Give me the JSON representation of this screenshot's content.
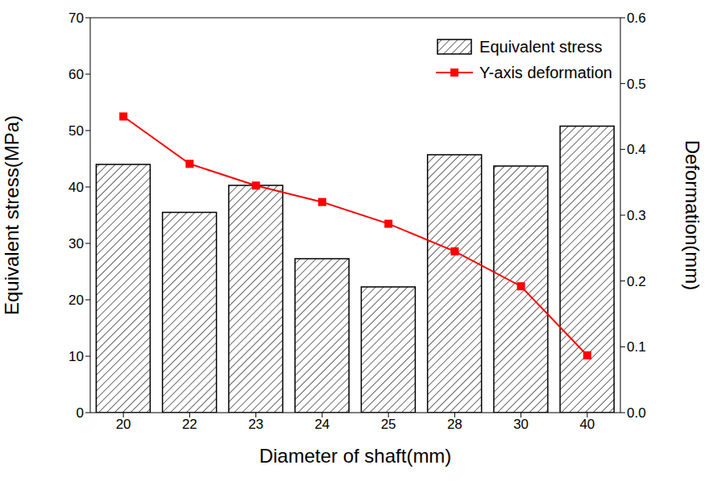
{
  "chart_data": {
    "type": "bar",
    "x_label": "Diameter of shaft(mm)",
    "y_label": "Equivalent stress(MPa)",
    "y2_label": "Deformation(mm)",
    "categories": [
      "20",
      "22",
      "23",
      "24",
      "25",
      "28",
      "30",
      "40"
    ],
    "series": [
      {
        "name": "Equivalent stress",
        "type": "bar",
        "color": "#000000",
        "values": [
          44.0,
          35.5,
          40.3,
          27.3,
          22.3,
          45.7,
          43.7,
          50.8
        ]
      },
      {
        "name": "Y-axis deformation",
        "type": "line",
        "color": "#ff0000",
        "marker": "square",
        "axis": "y2",
        "values": [
          0.45,
          0.378,
          0.345,
          0.32,
          0.287,
          0.245,
          0.192,
          0.087
        ]
      }
    ],
    "ylim": [
      0,
      70
    ],
    "yticks": [
      0,
      10,
      20,
      30,
      40,
      50,
      60,
      70
    ],
    "y2lim": [
      0,
      0.6
    ],
    "y2ticks": [
      {
        "value": 0,
        "label": "0.0"
      },
      0.1,
      0.2,
      0.3,
      0.4,
      0.5,
      0.6
    ],
    "grid": false,
    "legend": "upper right"
  }
}
